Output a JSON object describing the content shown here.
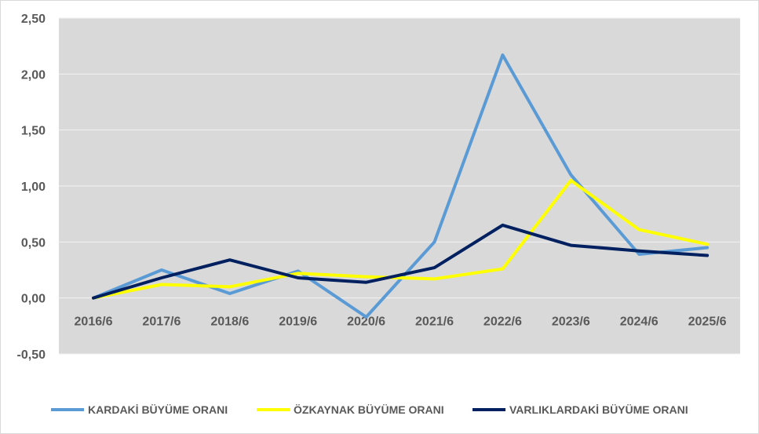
{
  "chart_data": {
    "type": "line",
    "title": "",
    "xlabel": "",
    "ylabel": "",
    "categories": [
      "2016/6",
      "2017/6",
      "2018/6",
      "2019/6",
      "2020/6",
      "2021/6",
      "2022/6",
      "2023/6",
      "2024/6",
      "2025/6"
    ],
    "ylim": [
      -0.5,
      2.5
    ],
    "yticks": [
      2.5,
      2.0,
      1.5,
      1.0,
      0.5,
      0.0,
      -0.5
    ],
    "ytick_labels": [
      "2,50",
      "2,00",
      "1,50",
      "1,00",
      "0,50",
      "0,00",
      "-0,50"
    ],
    "grid": true,
    "legend_position": "bottom",
    "plot_background": "#d9d9d9",
    "series": [
      {
        "name": "KARDAKİ BÜYÜME ORANI",
        "color": "#5b9bd5",
        "values": [
          0.0,
          0.25,
          0.04,
          0.24,
          -0.17,
          0.5,
          2.17,
          1.1,
          0.39,
          0.45
        ]
      },
      {
        "name": "ÖZKAYNAK BÜYÜME ORANI",
        "color": "#ffff00",
        "values": [
          0.0,
          0.12,
          0.1,
          0.22,
          0.19,
          0.17,
          0.26,
          1.05,
          0.61,
          0.48
        ]
      },
      {
        "name": "VARLIKLARDAKİ BÜYÜME ORANI",
        "color": "#002060",
        "values": [
          0.0,
          0.18,
          0.34,
          0.18,
          0.14,
          0.27,
          0.65,
          0.47,
          0.42,
          0.38
        ]
      }
    ]
  }
}
